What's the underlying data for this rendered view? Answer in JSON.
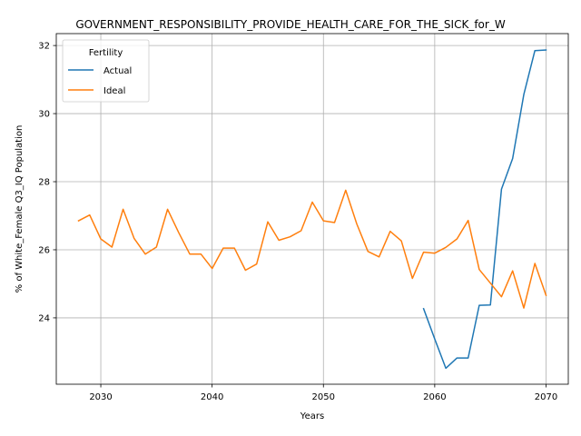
{
  "chart_data": {
    "type": "line",
    "title": "GOVERNMENT_RESPONSIBILITY_PROVIDE_HEALTH_CARE_FOR_THE_SICK_for_W",
    "xlabel": "Years",
    "ylabel": "% of White_Female Q3_IQ Population",
    "xlim": [
      2026,
      2072
    ],
    "ylim": [
      22.05,
      32.35
    ],
    "x_ticks": [
      2030,
      2040,
      2050,
      2060,
      2070
    ],
    "y_ticks": [
      24,
      26,
      28,
      30,
      32
    ],
    "grid": true,
    "legend": {
      "title": "Fertility",
      "placement": "top-left"
    },
    "series": [
      {
        "name": "Actual",
        "color": "#1f77b4",
        "x": [
          2059,
          2060,
          2061,
          2062,
          2063,
          2064,
          2065,
          2066,
          2067,
          2068,
          2069,
          2070
        ],
        "values": [
          24.27,
          23.38,
          22.52,
          22.82,
          22.82,
          24.37,
          24.38,
          27.78,
          28.68,
          30.56,
          31.85,
          31.87
        ]
      },
      {
        "name": "Ideal",
        "color": "#ff7f0e",
        "x": [
          2028,
          2029,
          2030,
          2031,
          2032,
          2033,
          2034,
          2035,
          2036,
          2037,
          2038,
          2039,
          2040,
          2041,
          2042,
          2043,
          2044,
          2045,
          2046,
          2047,
          2048,
          2049,
          2050,
          2051,
          2052,
          2053,
          2054,
          2055,
          2056,
          2057,
          2058,
          2059,
          2060,
          2061,
          2062,
          2063,
          2064,
          2065,
          2066,
          2067,
          2068,
          2069,
          2070
        ],
        "values": [
          26.85,
          27.02,
          26.32,
          26.08,
          27.19,
          26.33,
          25.87,
          26.08,
          27.19,
          26.5,
          25.87,
          25.87,
          25.45,
          26.05,
          26.05,
          25.4,
          25.58,
          26.82,
          26.28,
          26.38,
          26.56,
          27.4,
          26.85,
          26.8,
          27.75,
          26.76,
          25.95,
          25.79,
          26.54,
          26.26,
          25.16,
          25.93,
          25.9,
          26.07,
          26.32,
          26.86,
          25.42,
          25.02,
          24.62,
          25.38,
          24.29,
          25.6,
          24.66
        ]
      }
    ]
  }
}
